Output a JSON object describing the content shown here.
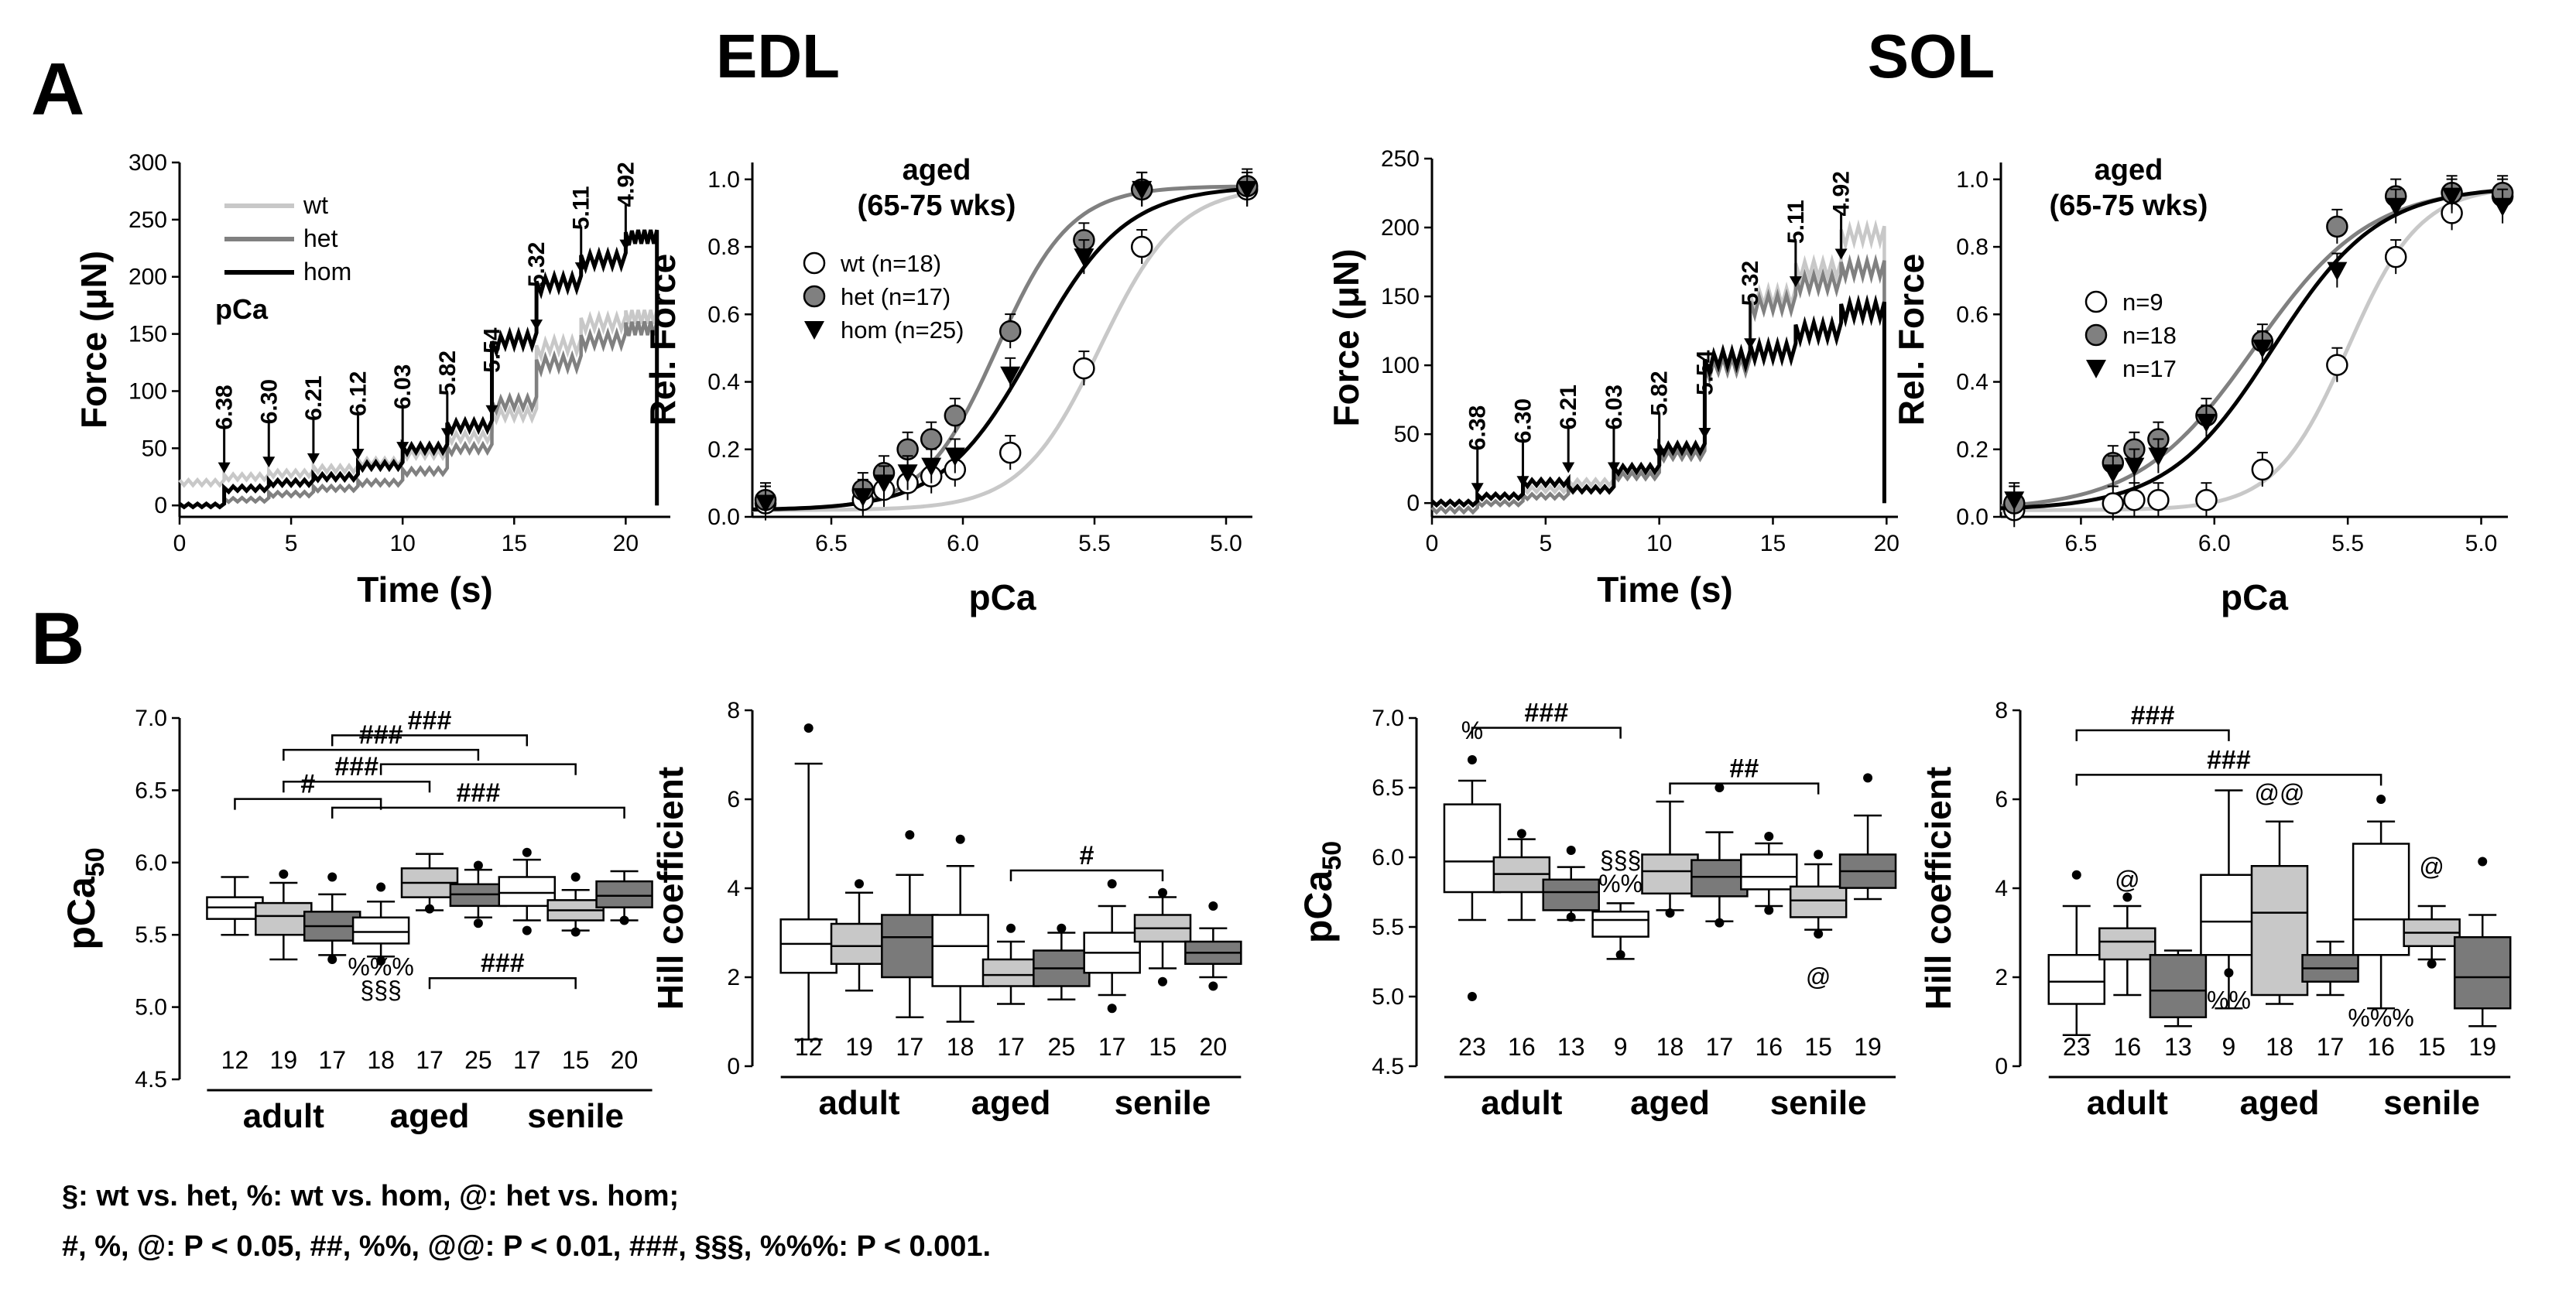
{
  "panel_labels": {
    "A": "A",
    "B": "B"
  },
  "headers": {
    "edl": "EDL",
    "sol": "SOL"
  },
  "footer": {
    "line1": "§: wt vs. het, %: wt vs. hom, @: het vs. hom;",
    "line2": "#, %, @:  P < 0.05, ##, %%, @@: P < 0.01, ###, §§§, %%%: P < 0.001."
  },
  "colors": {
    "wt": "#c8c8c8",
    "het": "#808080",
    "hom": "#000000"
  },
  "chart_data": [
    {
      "id": "edl_trace",
      "type": "line",
      "xlabel": "Time (s)",
      "ylabel": "Force (μN)",
      "xlim": [
        0,
        22
      ],
      "ylim": [
        -10,
        300
      ],
      "xticks": [
        0,
        5,
        10,
        15,
        20
      ],
      "yticks": [
        0,
        50,
        100,
        150,
        200,
        250,
        300
      ],
      "legend": [
        "wt",
        "het",
        "hom"
      ],
      "legend_title": "pCa",
      "step_times": [
        2,
        4,
        6,
        8,
        10,
        12,
        14,
        16,
        18,
        20
      ],
      "arrow_labels": [
        "6.38",
        "6.30",
        "6.21",
        "6.12",
        "6.03",
        "5.82",
        "5.54",
        "5.32",
        "5.11",
        "4.92"
      ],
      "series": [
        {
          "name": "wt",
          "levels": [
            20,
            25,
            28,
            32,
            38,
            45,
            60,
            80,
            140,
            160,
            165,
            0
          ]
        },
        {
          "name": "het",
          "levels": [
            0,
            5,
            10,
            15,
            20,
            30,
            50,
            90,
            125,
            145,
            155,
            0
          ]
        },
        {
          "name": "hom",
          "levels": [
            0,
            15,
            20,
            25,
            35,
            50,
            70,
            145,
            195,
            215,
            235,
            0
          ]
        }
      ]
    },
    {
      "id": "edl_curve",
      "type": "scatter",
      "xlabel": "pCa",
      "ylabel": "Rel. Force",
      "xlim": [
        6.8,
        4.9
      ],
      "ylim": [
        0,
        1.05
      ],
      "xticks": [
        "6.5",
        "6.0",
        "5.5",
        "5.0"
      ],
      "yticks": [
        "0.0",
        "0.2",
        "0.4",
        "0.6",
        "0.8",
        "1.0"
      ],
      "annotation": [
        "aged",
        "(65-75 wks)"
      ],
      "series": [
        {
          "name": "wt (n=18)",
          "pca50": 5.48,
          "hill": 2.9,
          "x": [
            6.75,
            6.38,
            6.3,
            6.21,
            6.12,
            6.03,
            5.82,
            5.54,
            5.32,
            4.92
          ],
          "y": [
            0.04,
            0.05,
            0.08,
            0.1,
            0.12,
            0.14,
            0.19,
            0.44,
            0.8,
            0.97
          ]
        },
        {
          "name": "het (n=17)",
          "pca50": 5.87,
          "hill": 3.1,
          "x": [
            6.75,
            6.38,
            6.3,
            6.21,
            6.12,
            6.03,
            5.82,
            5.54,
            5.32,
            4.92
          ],
          "y": [
            0.05,
            0.08,
            0.13,
            0.2,
            0.23,
            0.3,
            0.55,
            0.82,
            0.97,
            0.98
          ]
        },
        {
          "name": "hom (n=25)",
          "pca50": 5.73,
          "hill": 2.5,
          "x": [
            6.75,
            6.38,
            6.3,
            6.21,
            6.12,
            6.03,
            5.82,
            5.54,
            5.32,
            4.92
          ],
          "y": [
            0.04,
            0.06,
            0.1,
            0.13,
            0.15,
            0.18,
            0.42,
            0.77,
            0.97,
            0.97
          ]
        }
      ]
    },
    {
      "id": "sol_trace",
      "type": "line",
      "xlabel": "Time (s)",
      "ylabel": "Force (μN)",
      "xlim": [
        0,
        20.5
      ],
      "ylim": [
        -10,
        250
      ],
      "xticks": [
        0,
        5,
        10,
        15,
        20
      ],
      "yticks": [
        0,
        50,
        100,
        150,
        200,
        250
      ],
      "step_times": [
        2,
        4,
        6,
        8,
        10,
        12,
        14,
        16,
        18
      ],
      "arrow_labels": [
        "6.38",
        "6.30",
        "6.21",
        "6.03",
        "5.82",
        "5.54",
        "5.32",
        "5.11",
        "4.92"
      ],
      "series": [
        {
          "name": "wt",
          "levels": [
            0,
            5,
            10,
            15,
            25,
            40,
            100,
            150,
            170,
            195,
            0
          ]
        },
        {
          "name": "het",
          "levels": [
            -5,
            0,
            5,
            10,
            20,
            35,
            100,
            145,
            160,
            170,
            0
          ]
        },
        {
          "name": "hom",
          "levels": [
            0,
            5,
            15,
            10,
            25,
            40,
            105,
            110,
            125,
            140,
            0
          ]
        }
      ]
    },
    {
      "id": "sol_curve",
      "type": "scatter",
      "xlabel": "pCa",
      "ylabel": "Rel. Force",
      "xlim": [
        6.8,
        4.9
      ],
      "ylim": [
        0,
        1.05
      ],
      "xticks": [
        "6.5",
        "6.0",
        "5.5",
        "5.0"
      ],
      "yticks": [
        "0.0",
        "0.2",
        "0.4",
        "0.6",
        "0.8",
        "1.0"
      ],
      "annotation": [
        "aged",
        "(65-75 wks)"
      ],
      "series": [
        {
          "name": "n=9",
          "pca50": 5.5,
          "hill": 3.2,
          "x": [
            6.75,
            6.38,
            6.3,
            6.21,
            6.03,
            5.82,
            5.54,
            5.32,
            5.11,
            4.92
          ],
          "y": [
            0.02,
            0.04,
            0.05,
            0.05,
            0.05,
            0.14,
            0.45,
            0.77,
            0.9,
            0.95
          ]
        },
        {
          "name": "n=18",
          "pca50": 5.85,
          "hill": 2.0,
          "x": [
            6.75,
            6.38,
            6.3,
            6.21,
            6.03,
            5.82,
            5.54,
            5.32,
            5.11,
            4.92
          ],
          "y": [
            0.04,
            0.16,
            0.2,
            0.23,
            0.3,
            0.52,
            0.86,
            0.95,
            0.96,
            0.96
          ]
        },
        {
          "name": "n=17",
          "pca50": 5.78,
          "hill": 2.2,
          "x": [
            6.75,
            6.38,
            6.3,
            6.21,
            6.03,
            5.82,
            5.54,
            5.32,
            5.11,
            4.92
          ],
          "y": [
            0.05,
            0.13,
            0.15,
            0.18,
            0.28,
            0.5,
            0.73,
            0.92,
            0.95,
            0.92
          ]
        }
      ]
    },
    {
      "id": "edl_pca50",
      "type": "box",
      "ylabel": "pCa",
      "ylabel_sub": "50",
      "ylim": [
        4.5,
        7.0
      ],
      "yticks": [
        "4.5",
        "5.0",
        "5.5",
        "6.0",
        "6.5",
        "7.0"
      ],
      "groups": [
        "adult",
        "aged",
        "senile"
      ],
      "n": [
        "12",
        "19",
        "17",
        "18",
        "17",
        "25",
        "17",
        "15",
        "20"
      ],
      "boxes": [
        {
          "genotype": "wt",
          "min": 5.5,
          "q1": 5.61,
          "median": 5.69,
          "q3": 5.76,
          "max": 5.9,
          "outliers": []
        },
        {
          "genotype": "het",
          "min": 5.33,
          "q1": 5.5,
          "median": 5.63,
          "q3": 5.72,
          "max": 5.86,
          "outliers": [
            5.92
          ]
        },
        {
          "genotype": "hom",
          "min": 5.36,
          "q1": 5.46,
          "median": 5.56,
          "q3": 5.66,
          "max": 5.78,
          "outliers": [
            5.9,
            5.33
          ]
        },
        {
          "genotype": "wt",
          "min": 5.35,
          "q1": 5.44,
          "median": 5.52,
          "q3": 5.62,
          "max": 5.73,
          "outliers": [
            5.83,
            5.32
          ]
        },
        {
          "genotype": "het",
          "min": 5.67,
          "q1": 5.76,
          "median": 5.86,
          "q3": 5.96,
          "max": 6.06,
          "outliers": [
            5.68
          ]
        },
        {
          "genotype": "hom",
          "min": 5.62,
          "q1": 5.7,
          "median": 5.78,
          "q3": 5.85,
          "max": 5.95,
          "outliers": [
            5.58,
            5.98
          ]
        },
        {
          "genotype": "wt",
          "min": 5.6,
          "q1": 5.7,
          "median": 5.79,
          "q3": 5.9,
          "max": 6.02,
          "outliers": [
            6.07,
            5.53
          ]
        },
        {
          "genotype": "het",
          "min": 5.53,
          "q1": 5.6,
          "median": 5.67,
          "q3": 5.74,
          "max": 5.81,
          "outliers": [
            5.9,
            5.52
          ]
        },
        {
          "genotype": "hom",
          "min": 5.6,
          "q1": 5.69,
          "median": 5.77,
          "q3": 5.87,
          "max": 5.94,
          "outliers": [
            5.6
          ]
        }
      ],
      "brackets": [
        {
          "from": 2,
          "to": 6,
          "y": 6.88,
          "label": "###"
        },
        {
          "from": 1,
          "to": 5,
          "y": 6.78,
          "label": "###"
        },
        {
          "from": 3,
          "to": 7,
          "y": 6.68,
          "label": ""
        },
        {
          "from": 1,
          "to": 4,
          "y": 6.56,
          "label": "###"
        },
        {
          "from": 0,
          "to": 3,
          "y": 6.44,
          "label": "#"
        },
        {
          "from": 2,
          "to": 8,
          "y": 6.38,
          "label": "###"
        },
        {
          "from": 4,
          "to": 7,
          "y": 5.2,
          "label": "###"
        }
      ],
      "box_annotations": [
        {
          "box": 3,
          "y": 5.22,
          "label": "%%%"
        },
        {
          "box": 3,
          "y": 5.06,
          "label": "§§§"
        }
      ]
    },
    {
      "id": "edl_hill",
      "type": "box",
      "ylabel": "Hill coefficient",
      "ylim": [
        0,
        8
      ],
      "yticks": [
        "0",
        "2",
        "4",
        "6",
        "8"
      ],
      "groups": [
        "adult",
        "aged",
        "senile"
      ],
      "n": [
        "12",
        "19",
        "17",
        "18",
        "17",
        "25",
        "17",
        "15",
        "20"
      ],
      "boxes": [
        {
          "genotype": "wt",
          "min": 0.6,
          "q1": 2.1,
          "median": 2.75,
          "q3": 3.3,
          "max": 6.8,
          "outliers": [
            7.6
          ]
        },
        {
          "genotype": "het",
          "min": 1.7,
          "q1": 2.3,
          "median": 2.7,
          "q3": 3.2,
          "max": 3.9,
          "outliers": [
            4.1
          ]
        },
        {
          "genotype": "hom",
          "min": 1.1,
          "q1": 2.0,
          "median": 2.9,
          "q3": 3.4,
          "max": 4.3,
          "outliers": [
            5.2
          ]
        },
        {
          "genotype": "wt",
          "min": 1.0,
          "q1": 1.8,
          "median": 2.7,
          "q3": 3.4,
          "max": 4.5,
          "outliers": [
            5.1
          ]
        },
        {
          "genotype": "het",
          "min": 1.4,
          "q1": 1.8,
          "median": 2.05,
          "q3": 2.4,
          "max": 2.8,
          "outliers": [
            3.1
          ]
        },
        {
          "genotype": "hom",
          "min": 1.5,
          "q1": 1.8,
          "median": 2.2,
          "q3": 2.6,
          "max": 3.0,
          "outliers": [
            3.1
          ]
        },
        {
          "genotype": "wt",
          "min": 1.6,
          "q1": 2.1,
          "median": 2.55,
          "q3": 3.0,
          "max": 3.6,
          "outliers": [
            4.1,
            1.3
          ]
        },
        {
          "genotype": "het",
          "min": 2.2,
          "q1": 2.8,
          "median": 3.1,
          "q3": 3.4,
          "max": 3.8,
          "outliers": [
            3.9,
            1.9
          ]
        },
        {
          "genotype": "hom",
          "min": 2.0,
          "q1": 2.3,
          "median": 2.55,
          "q3": 2.8,
          "max": 3.1,
          "outliers": [
            3.6,
            1.8
          ]
        }
      ],
      "brackets": [
        {
          "from": 4,
          "to": 7,
          "y": 4.4,
          "label": "#"
        }
      ],
      "box_annotations": []
    },
    {
      "id": "sol_pca50",
      "type": "box",
      "ylabel": "pCa",
      "ylabel_sub": "50",
      "ylim": [
        4.5,
        7.0
      ],
      "yticks": [
        "4.5",
        "5.0",
        "5.5",
        "6.0",
        "6.5",
        "7.0"
      ],
      "groups": [
        "adult",
        "aged",
        "senile"
      ],
      "n": [
        "23",
        "16",
        "13",
        "9",
        "18",
        "17",
        "16",
        "15",
        "19"
      ],
      "boxes": [
        {
          "genotype": "wt",
          "min": 5.55,
          "q1": 5.75,
          "median": 5.97,
          "q3": 6.38,
          "max": 6.55,
          "outliers": [
            6.7,
            5.0
          ]
        },
        {
          "genotype": "het",
          "min": 5.55,
          "q1": 5.75,
          "median": 5.88,
          "q3": 6.0,
          "max": 6.13,
          "outliers": [
            6.17
          ]
        },
        {
          "genotype": "hom",
          "min": 5.55,
          "q1": 5.62,
          "median": 5.75,
          "q3": 5.84,
          "max": 5.93,
          "outliers": [
            6.05,
            5.57
          ]
        },
        {
          "genotype": "wt",
          "min": 5.27,
          "q1": 5.43,
          "median": 5.55,
          "q3": 5.61,
          "max": 5.67,
          "outliers": [
            5.3
          ]
        },
        {
          "genotype": "het",
          "min": 5.62,
          "q1": 5.74,
          "median": 5.9,
          "q3": 6.02,
          "max": 6.4,
          "outliers": [
            5.6
          ]
        },
        {
          "genotype": "hom",
          "min": 5.54,
          "q1": 5.72,
          "median": 5.86,
          "q3": 5.98,
          "max": 6.18,
          "outliers": [
            6.5,
            5.53
          ]
        },
        {
          "genotype": "wt",
          "min": 5.65,
          "q1": 5.77,
          "median": 5.86,
          "q3": 6.02,
          "max": 6.1,
          "outliers": [
            6.15,
            5.62
          ]
        },
        {
          "genotype": "het",
          "min": 5.48,
          "q1": 5.57,
          "median": 5.69,
          "q3": 5.79,
          "max": 5.95,
          "outliers": [
            6.02,
            5.45
          ]
        },
        {
          "genotype": "hom",
          "min": 5.7,
          "q1": 5.78,
          "median": 5.9,
          "q3": 6.02,
          "max": 6.3,
          "outliers": [
            6.57
          ]
        }
      ],
      "brackets": [
        {
          "from": 0,
          "to": 3,
          "y": 6.93,
          "label": "###"
        },
        {
          "from": 4,
          "to": 7,
          "y": 6.53,
          "label": "##"
        }
      ],
      "box_annotations": [
        {
          "box": 0,
          "y": 6.85,
          "label": "%"
        },
        {
          "box": 3,
          "y": 5.92,
          "label": "§§§"
        },
        {
          "box": 3,
          "y": 5.75,
          "label": "%%"
        },
        {
          "box": 7,
          "y": 5.08,
          "label": "@"
        }
      ]
    },
    {
      "id": "sol_hill",
      "type": "box",
      "ylabel": "Hill coefficient",
      "ylim": [
        0,
        8
      ],
      "yticks": [
        "0",
        "2",
        "4",
        "6",
        "8"
      ],
      "groups": [
        "adult",
        "aged",
        "senile"
      ],
      "n": [
        "23",
        "16",
        "13",
        "9",
        "18",
        "17",
        "16",
        "15",
        "19"
      ],
      "boxes": [
        {
          "genotype": "wt",
          "min": 0.7,
          "q1": 1.4,
          "median": 1.9,
          "q3": 2.5,
          "max": 3.6,
          "outliers": [
            4.3
          ]
        },
        {
          "genotype": "het",
          "min": 1.6,
          "q1": 2.4,
          "median": 2.8,
          "q3": 3.1,
          "max": 3.6,
          "outliers": [
            3.8
          ]
        },
        {
          "genotype": "hom",
          "min": 0.9,
          "q1": 1.1,
          "median": 1.7,
          "q3": 2.5,
          "max": 2.6,
          "outliers": []
        },
        {
          "genotype": "wt",
          "min": 1.3,
          "q1": 2.5,
          "median": 3.25,
          "q3": 4.3,
          "max": 6.2,
          "outliers": [
            2.1
          ]
        },
        {
          "genotype": "het",
          "min": 1.4,
          "q1": 1.6,
          "median": 3.45,
          "q3": 4.5,
          "max": 5.5,
          "outliers": []
        },
        {
          "genotype": "hom",
          "min": 1.6,
          "q1": 1.9,
          "median": 2.2,
          "q3": 2.5,
          "max": 2.8,
          "outliers": []
        },
        {
          "genotype": "wt",
          "min": 1.3,
          "q1": 2.5,
          "median": 3.3,
          "q3": 5.0,
          "max": 5.5,
          "outliers": [
            6.0
          ]
        },
        {
          "genotype": "het",
          "min": 2.4,
          "q1": 2.7,
          "median": 3.0,
          "q3": 3.3,
          "max": 3.6,
          "outliers": [
            2.3
          ]
        },
        {
          "genotype": "hom",
          "min": 0.9,
          "q1": 1.3,
          "median": 2.0,
          "q3": 2.9,
          "max": 3.4,
          "outliers": [
            4.6
          ]
        }
      ],
      "brackets": [
        {
          "from": 0,
          "to": 3,
          "y": 7.55,
          "label": "###"
        },
        {
          "from": 0,
          "to": 6,
          "y": 6.55,
          "label": "###"
        }
      ],
      "box_annotations": [
        {
          "box": 1,
          "y": 4.0,
          "label": "@"
        },
        {
          "box": 3,
          "y": 1.3,
          "label": "%%"
        },
        {
          "box": 4,
          "y": 5.95,
          "label": "@@"
        },
        {
          "box": 6,
          "y": 0.9,
          "label": "%%%"
        },
        {
          "box": 7,
          "y": 4.3,
          "label": "@"
        }
      ]
    }
  ]
}
